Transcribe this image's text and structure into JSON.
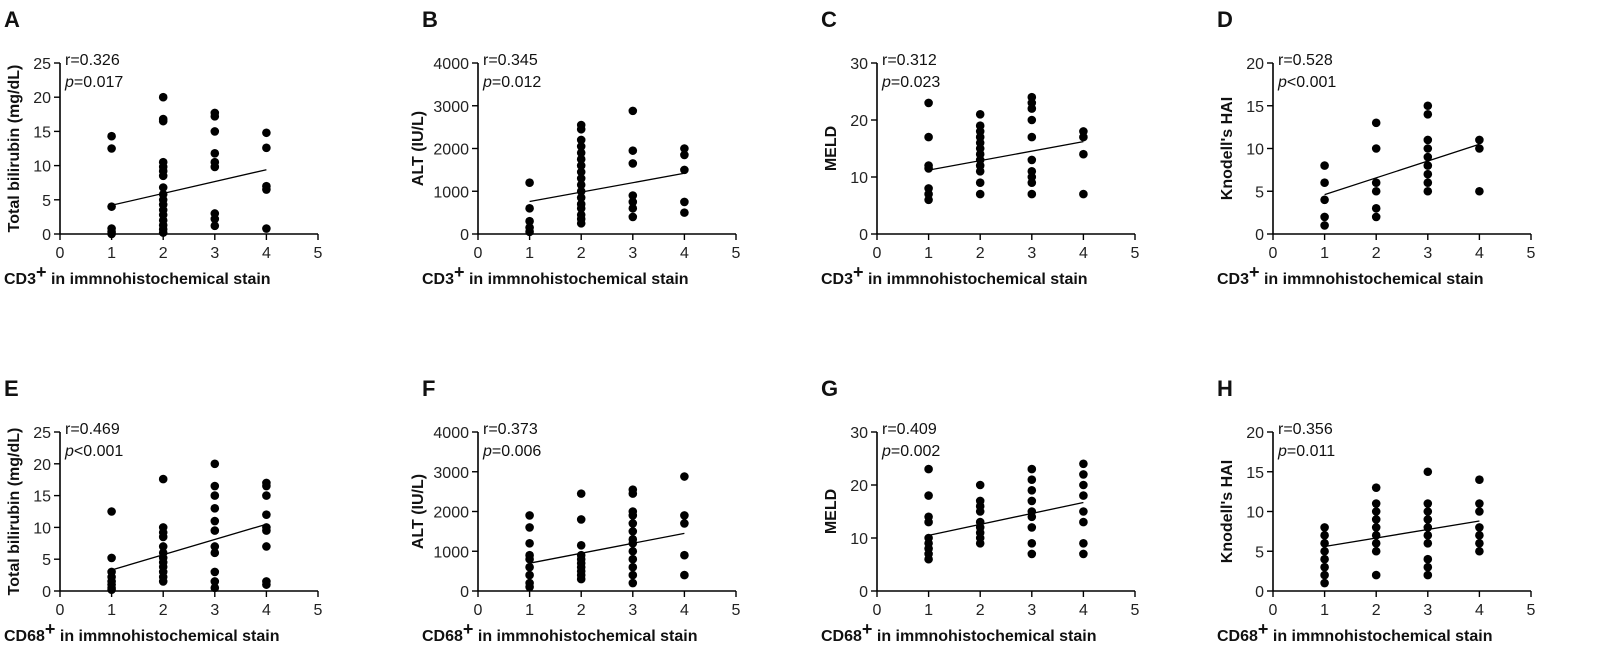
{
  "chart_data": [
    {
      "id": "A",
      "type": "scatter",
      "panel_label": "A",
      "ylabel": "Total bilirubin (mg/dL)",
      "xlabel_marker": "CD3",
      "xlabel_rest": " in immnohistochemical  stain",
      "xlim": [
        0,
        5
      ],
      "ylim": [
        0,
        25
      ],
      "xticks": [
        "0",
        "1",
        "2",
        "3",
        "4",
        "5"
      ],
      "yticks": [
        "0",
        "5",
        "10",
        "15",
        "20",
        "25"
      ],
      "r_text": "r=0.326",
      "p_prefix": "p",
      "p_rest": "=0.017",
      "regression": {
        "x": [
          1,
          4
        ],
        "y": [
          4.2,
          9.4
        ]
      },
      "points": [
        [
          1,
          14.3
        ],
        [
          1,
          12.5
        ],
        [
          1,
          4.0
        ],
        [
          1,
          0.8
        ],
        [
          1,
          0.3
        ],
        [
          1,
          0.0
        ],
        [
          2,
          20.0
        ],
        [
          2,
          16.8
        ],
        [
          2,
          16.5
        ],
        [
          2,
          10.5
        ],
        [
          2,
          9.8
        ],
        [
          2,
          9.2
        ],
        [
          2,
          8.5
        ],
        [
          2,
          6.8
        ],
        [
          2,
          5.8
        ],
        [
          2,
          5.0
        ],
        [
          2,
          4.3
        ],
        [
          2,
          3.5
        ],
        [
          2,
          2.8
        ],
        [
          2,
          2.0
        ],
        [
          2,
          1.3
        ],
        [
          2,
          0.7
        ],
        [
          2,
          0.2
        ],
        [
          3,
          17.7
        ],
        [
          3,
          17.2
        ],
        [
          3,
          15.0
        ],
        [
          3,
          11.8
        ],
        [
          3,
          10.5
        ],
        [
          3,
          9.8
        ],
        [
          3,
          3.0
        ],
        [
          3,
          2.2
        ],
        [
          3,
          1.2
        ],
        [
          4,
          14.8
        ],
        [
          4,
          12.6
        ],
        [
          4,
          7.0
        ],
        [
          4,
          6.5
        ],
        [
          4,
          0.8
        ]
      ]
    },
    {
      "id": "B",
      "type": "scatter",
      "panel_label": "B",
      "ylabel": "ALT (IU/L)",
      "xlabel_marker": "CD3",
      "xlabel_rest": " in immnohistochemical  stain",
      "xlim": [
        0,
        5
      ],
      "ylim": [
        0,
        4000
      ],
      "xticks": [
        "0",
        "1",
        "2",
        "3",
        "4",
        "5"
      ],
      "yticks": [
        "0",
        "1000",
        "2000",
        "3000",
        "4000"
      ],
      "r_text": "r=0.345",
      "p_prefix": "p",
      "p_rest": "=0.012",
      "regression": {
        "x": [
          1,
          4
        ],
        "y": [
          760,
          1420
        ]
      },
      "points": [
        [
          1,
          1200
        ],
        [
          1,
          600
        ],
        [
          1,
          300
        ],
        [
          1,
          150
        ],
        [
          1,
          50
        ],
        [
          2,
          2550
        ],
        [
          2,
          2450
        ],
        [
          2,
          2200
        ],
        [
          2,
          2050
        ],
        [
          2,
          1900
        ],
        [
          2,
          1750
        ],
        [
          2,
          1600
        ],
        [
          2,
          1450
        ],
        [
          2,
          1300
        ],
        [
          2,
          1150
        ],
        [
          2,
          1000
        ],
        [
          2,
          850
        ],
        [
          2,
          700
        ],
        [
          2,
          600
        ],
        [
          2,
          450
        ],
        [
          2,
          350
        ],
        [
          2,
          250
        ],
        [
          3,
          2880
        ],
        [
          3,
          1950
        ],
        [
          3,
          1650
        ],
        [
          3,
          900
        ],
        [
          3,
          750
        ],
        [
          3,
          600
        ],
        [
          3,
          400
        ],
        [
          4,
          2000
        ],
        [
          4,
          1850
        ],
        [
          4,
          1500
        ],
        [
          4,
          750
        ],
        [
          4,
          500
        ]
      ]
    },
    {
      "id": "C",
      "type": "scatter",
      "panel_label": "C",
      "ylabel": "MELD",
      "xlabel_marker": "CD3",
      "xlabel_rest": " in immnohistochemical  stain",
      "xlim": [
        0,
        5
      ],
      "ylim": [
        0,
        30
      ],
      "xticks": [
        "0",
        "1",
        "2",
        "3",
        "4",
        "5"
      ],
      "yticks": [
        "0",
        "10",
        "20",
        "30"
      ],
      "r_text": "r=0.312",
      "p_prefix": "p",
      "p_rest": "=0.023",
      "regression": {
        "x": [
          1,
          4
        ],
        "y": [
          11.2,
          16.2
        ]
      },
      "points": [
        [
          1,
          23
        ],
        [
          1,
          17
        ],
        [
          1,
          12
        ],
        [
          1,
          11.5
        ],
        [
          1,
          8
        ],
        [
          1,
          7
        ],
        [
          1,
          6
        ],
        [
          2,
          21
        ],
        [
          2,
          19
        ],
        [
          2,
          18
        ],
        [
          2,
          17
        ],
        [
          2,
          16
        ],
        [
          2,
          15
        ],
        [
          2,
          14
        ],
        [
          2,
          13
        ],
        [
          2,
          12
        ],
        [
          2,
          11
        ],
        [
          2,
          9
        ],
        [
          2,
          7
        ],
        [
          3,
          24
        ],
        [
          3,
          23
        ],
        [
          3,
          22
        ],
        [
          3,
          20
        ],
        [
          3,
          17
        ],
        [
          3,
          13
        ],
        [
          3,
          11
        ],
        [
          3,
          10
        ],
        [
          3,
          9
        ],
        [
          3,
          7
        ],
        [
          4,
          18
        ],
        [
          4,
          17
        ],
        [
          4,
          14
        ],
        [
          4,
          7
        ]
      ]
    },
    {
      "id": "D",
      "type": "scatter",
      "panel_label": "D",
      "ylabel": "Knodell's HAI",
      "xlabel_marker": "CD3",
      "xlabel_rest": " in immnohistochemical  stain",
      "xlim": [
        0,
        5
      ],
      "ylim": [
        0,
        20
      ],
      "xticks": [
        "0",
        "1",
        "2",
        "3",
        "4",
        "5"
      ],
      "yticks": [
        "0",
        "5",
        "10",
        "15",
        "20"
      ],
      "r_text": "r=0.528",
      "p_prefix": "p",
      "p_rest": "<0.001",
      "regression": {
        "x": [
          1,
          4
        ],
        "y": [
          4.6,
          10.5
        ]
      },
      "points": [
        [
          1,
          8
        ],
        [
          1,
          6
        ],
        [
          1,
          4
        ],
        [
          1,
          2
        ],
        [
          1,
          1
        ],
        [
          2,
          13
        ],
        [
          2,
          10
        ],
        [
          2,
          6
        ],
        [
          2,
          5
        ],
        [
          2,
          3
        ],
        [
          2,
          2
        ],
        [
          3,
          15
        ],
        [
          3,
          14
        ],
        [
          3,
          11
        ],
        [
          3,
          10
        ],
        [
          3,
          9
        ],
        [
          3,
          8
        ],
        [
          3,
          7
        ],
        [
          3,
          6
        ],
        [
          3,
          5
        ],
        [
          4,
          11
        ],
        [
          4,
          10
        ],
        [
          4,
          5
        ]
      ]
    },
    {
      "id": "E",
      "type": "scatter",
      "panel_label": "E",
      "ylabel": "Total bilirubin (mg/dL)",
      "xlabel_marker": "CD68",
      "xlabel_rest": " in immnohistochemical  stain",
      "xlim": [
        0,
        5
      ],
      "ylim": [
        0,
        25
      ],
      "xticks": [
        "0",
        "1",
        "2",
        "3",
        "4",
        "5"
      ],
      "yticks": [
        "0",
        "5",
        "10",
        "15",
        "20",
        "25"
      ],
      "r_text": "r=0.469",
      "p_prefix": "p",
      "p_rest": "<0.001",
      "regression": {
        "x": [
          1,
          4
        ],
        "y": [
          3.3,
          10.5
        ]
      },
      "points": [
        [
          1,
          12.5
        ],
        [
          1,
          5.2
        ],
        [
          1,
          3.0
        ],
        [
          1,
          2.2
        ],
        [
          1,
          1.5
        ],
        [
          1,
          1.0
        ],
        [
          1,
          0.5
        ],
        [
          1,
          0.2
        ],
        [
          2,
          17.6
        ],
        [
          2,
          10.0
        ],
        [
          2,
          9.2
        ],
        [
          2,
          8.5
        ],
        [
          2,
          7.0
        ],
        [
          2,
          6.0
        ],
        [
          2,
          5.2
        ],
        [
          2,
          4.5
        ],
        [
          2,
          3.8
        ],
        [
          2,
          3.0
        ],
        [
          2,
          2.2
        ],
        [
          2,
          1.5
        ],
        [
          3,
          20.0
        ],
        [
          3,
          16.5
        ],
        [
          3,
          15.0
        ],
        [
          3,
          13.0
        ],
        [
          3,
          11.0
        ],
        [
          3,
          9.5
        ],
        [
          3,
          7.0
        ],
        [
          3,
          6.0
        ],
        [
          3,
          3.0
        ],
        [
          3,
          1.5
        ],
        [
          3,
          0.5
        ],
        [
          4,
          17.0
        ],
        [
          4,
          16.5
        ],
        [
          4,
          15.0
        ],
        [
          4,
          12.0
        ],
        [
          4,
          10.0
        ],
        [
          4,
          9.5
        ],
        [
          4,
          7.0
        ],
        [
          4,
          1.5
        ],
        [
          4,
          1.0
        ]
      ]
    },
    {
      "id": "F",
      "type": "scatter",
      "panel_label": "F",
      "ylabel": "ALT (IU/L)",
      "xlabel_marker": "CD68",
      "xlabel_rest": " in immnohistochemical  stain",
      "xlim": [
        0,
        5
      ],
      "ylim": [
        0,
        4000
      ],
      "xticks": [
        "0",
        "1",
        "2",
        "3",
        "4",
        "5"
      ],
      "yticks": [
        "0",
        "1000",
        "2000",
        "3000",
        "4000"
      ],
      "r_text": "r=0.373",
      "p_prefix": "p",
      "p_rest": "=0.006",
      "regression": {
        "x": [
          1,
          4
        ],
        "y": [
          700,
          1450
        ]
      },
      "points": [
        [
          1,
          1900
        ],
        [
          1,
          1600
        ],
        [
          1,
          1200
        ],
        [
          1,
          900
        ],
        [
          1,
          800
        ],
        [
          1,
          600
        ],
        [
          1,
          400
        ],
        [
          1,
          200
        ],
        [
          1,
          100
        ],
        [
          2,
          2450
        ],
        [
          2,
          1800
        ],
        [
          2,
          1150
        ],
        [
          2,
          900
        ],
        [
          2,
          800
        ],
        [
          2,
          700
        ],
        [
          2,
          600
        ],
        [
          2,
          500
        ],
        [
          2,
          400
        ],
        [
          2,
          300
        ],
        [
          3,
          2550
        ],
        [
          3,
          2450
        ],
        [
          3,
          2000
        ],
        [
          3,
          1900
        ],
        [
          3,
          1700
        ],
        [
          3,
          1500
        ],
        [
          3,
          1300
        ],
        [
          3,
          1200
        ],
        [
          3,
          1000
        ],
        [
          3,
          800
        ],
        [
          3,
          600
        ],
        [
          3,
          400
        ],
        [
          3,
          200
        ],
        [
          4,
          2880
        ],
        [
          4,
          1900
        ],
        [
          4,
          1700
        ],
        [
          4,
          900
        ],
        [
          4,
          400
        ]
      ]
    },
    {
      "id": "G",
      "type": "scatter",
      "panel_label": "G",
      "ylabel": "MELD",
      "xlabel_marker": "CD68",
      "xlabel_rest": " in immnohistochemical  stain",
      "xlim": [
        0,
        5
      ],
      "ylim": [
        0,
        30
      ],
      "xticks": [
        "0",
        "1",
        "2",
        "3",
        "4",
        "5"
      ],
      "yticks": [
        "0",
        "10",
        "20",
        "30"
      ],
      "r_text": "r=0.409",
      "p_prefix": "p",
      "p_rest": "=0.002",
      "regression": {
        "x": [
          1,
          4
        ],
        "y": [
          10.5,
          16.7
        ]
      },
      "points": [
        [
          1,
          23
        ],
        [
          1,
          18
        ],
        [
          1,
          14
        ],
        [
          1,
          13
        ],
        [
          1,
          10
        ],
        [
          1,
          9
        ],
        [
          1,
          8
        ],
        [
          1,
          7
        ],
        [
          1,
          6
        ],
        [
          2,
          20
        ],
        [
          2,
          17
        ],
        [
          2,
          16
        ],
        [
          2,
          15
        ],
        [
          2,
          13
        ],
        [
          2,
          12
        ],
        [
          2,
          11
        ],
        [
          2,
          10
        ],
        [
          2,
          9
        ],
        [
          3,
          23
        ],
        [
          3,
          21
        ],
        [
          3,
          19
        ],
        [
          3,
          17
        ],
        [
          3,
          15
        ],
        [
          3,
          14
        ],
        [
          3,
          12
        ],
        [
          3,
          9
        ],
        [
          3,
          7
        ],
        [
          4,
          24
        ],
        [
          4,
          22
        ],
        [
          4,
          20
        ],
        [
          4,
          18
        ],
        [
          4,
          15
        ],
        [
          4,
          13
        ],
        [
          4,
          9
        ],
        [
          4,
          7
        ]
      ]
    },
    {
      "id": "H",
      "type": "scatter",
      "panel_label": "H",
      "ylabel": "Knodell's HAI",
      "xlabel_marker": "CD68",
      "xlabel_rest": " in immnohistochemical  stain",
      "xlim": [
        0,
        5
      ],
      "ylim": [
        0,
        20
      ],
      "xticks": [
        "0",
        "1",
        "2",
        "3",
        "4",
        "5"
      ],
      "yticks": [
        "0",
        "5",
        "10",
        "15",
        "20"
      ],
      "r_text": "r=0.356",
      "p_prefix": "p",
      "p_rest": "=0.011",
      "regression": {
        "x": [
          1,
          4
        ],
        "y": [
          5.6,
          8.8
        ]
      },
      "points": [
        [
          1,
          8
        ],
        [
          1,
          7
        ],
        [
          1,
          6
        ],
        [
          1,
          5
        ],
        [
          1,
          4
        ],
        [
          1,
          3
        ],
        [
          1,
          2
        ],
        [
          1,
          1
        ],
        [
          2,
          13
        ],
        [
          2,
          11
        ],
        [
          2,
          10
        ],
        [
          2,
          9
        ],
        [
          2,
          8
        ],
        [
          2,
          7
        ],
        [
          2,
          6
        ],
        [
          2,
          5
        ],
        [
          2,
          2
        ],
        [
          3,
          15
        ],
        [
          3,
          11
        ],
        [
          3,
          10
        ],
        [
          3,
          9
        ],
        [
          3,
          8
        ],
        [
          3,
          7
        ],
        [
          3,
          6
        ],
        [
          3,
          4
        ],
        [
          3,
          3
        ],
        [
          3,
          2
        ],
        [
          4,
          14
        ],
        [
          4,
          11
        ],
        [
          4,
          10
        ],
        [
          4,
          8
        ],
        [
          4,
          7
        ],
        [
          4,
          6
        ],
        [
          4,
          5
        ]
      ]
    }
  ]
}
